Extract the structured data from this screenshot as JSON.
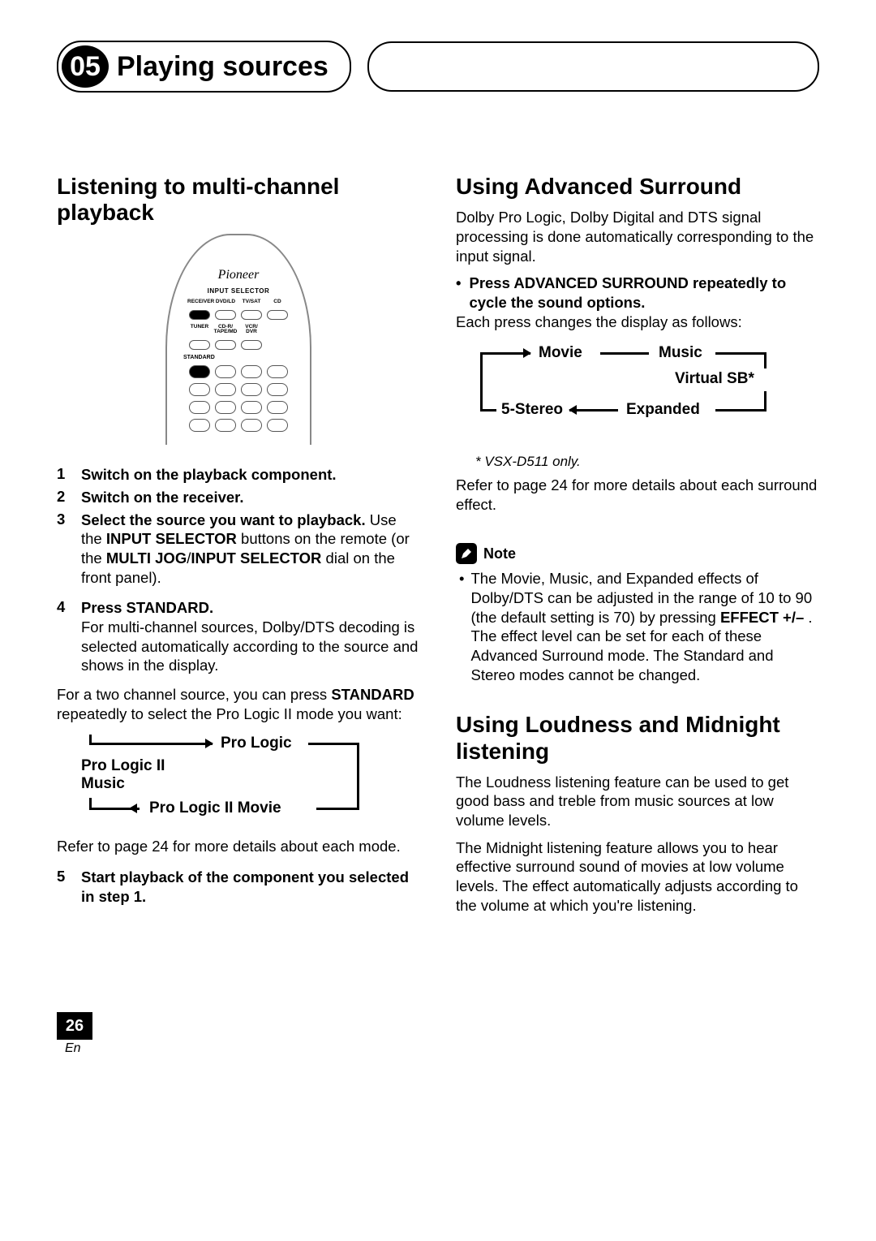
{
  "chapter": {
    "number": "05",
    "title": "Playing sources"
  },
  "left": {
    "h1": "Listening to multi-channel playback",
    "remote": {
      "brand": "Pioneer",
      "input_selector": "INPUT SELECTOR",
      "row1": [
        "RECEIVER",
        "DVD/LD",
        "TV/SAT",
        "CD"
      ],
      "row2": [
        "TUNER",
        "CD-R/\nTAPE/MD",
        "VCR/\nDVR",
        ""
      ],
      "standard": "STANDARD"
    },
    "steps": [
      {
        "n": "1",
        "bold": "Switch on the playback component."
      },
      {
        "n": "2",
        "bold": "Switch on the receiver."
      },
      {
        "n": "3",
        "bold": "Select the source you want to playback.",
        "body": "Use the <b>INPUT SELECTOR</b> buttons on the remote (or the <b>MULTI JOG</b>/<b>INPUT SELECTOR</b> dial on the front panel)."
      },
      {
        "n": "4",
        "bold": "Press STANDARD.",
        "body": "For multi-channel sources, Dolby/DTS decoding is selected automatically according to the source and shows in the display."
      }
    ],
    "p_two_ch": "For a two channel source, you can press <b>STANDARD</b> repeatedly to select the Pro Logic II mode you want:",
    "cycle": {
      "a": "Pro Logic",
      "b": "Pro Logic II Movie",
      "c": "Pro Logic II\nMusic"
    },
    "refer": "Refer to page 24 for more details about each mode.",
    "step5": {
      "n": "5",
      "bold": "Start playback of the component you selected in step 1."
    }
  },
  "right": {
    "h1": "Using Advanced Surround",
    "intro": "Dolby Pro Logic, Dolby Digital and DTS signal processing is done automatically corresponding to the input signal.",
    "press_bold": "Press ADVANCED SURROUND repeatedly to cycle the sound options.",
    "each": "Each press changes the display as follows:",
    "cycle": {
      "a": "Movie",
      "b": "Music",
      "c": "Virtual SB*",
      "d": "Expanded",
      "e": "5-Stereo"
    },
    "footnote": "* VSX-D511 only.",
    "refer": "Refer to page 24 for more details about each surround effect.",
    "note_label": "Note",
    "note_body": "The Movie, Music, and Expanded effects of Dolby/DTS can be adjusted in the range of 10 to 90 (the default setting is 70) by pressing <b>EFFECT +/–</b> . The effect level can be set for each of these Advanced Surround mode. The Standard and Stereo modes cannot be changed.",
    "h2": "Using Loudness and Midnight listening",
    "loud": "The Loudness listening feature can be used to get good bass and treble from music sources at low volume levels.",
    "mid": "The Midnight listening feature allows you to hear effective surround sound of movies at low volume levels. The effect automatically adjusts according to the volume at which you're listening."
  },
  "footer": {
    "page": "26",
    "lang": "En"
  }
}
